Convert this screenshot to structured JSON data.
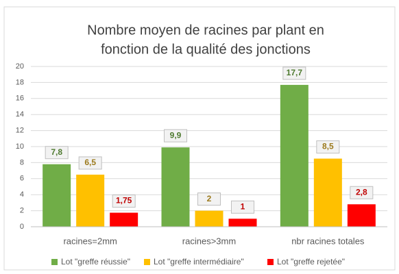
{
  "chart_data": {
    "type": "bar",
    "title": [
      "Nombre moyen de racines par plant en",
      "fonction de la qualité des jonctions"
    ],
    "categories": [
      "racines=2mm",
      "racines>3mm",
      "nbr racines totales"
    ],
    "series": [
      {
        "name": "Lot \"greffe réussie\"",
        "color": "#70ad47",
        "label_color": "#4e7a2f",
        "values": [
          7.8,
          9.9,
          17.7
        ],
        "value_labels": [
          "7,8",
          "9,9",
          "17,7"
        ]
      },
      {
        "name": "Lot \"greffe intermédiaire\"",
        "color": "#ffc000",
        "label_color": "#9c7a1c",
        "values": [
          6.5,
          2,
          8.5
        ],
        "value_labels": [
          "6,5",
          "2",
          "8,5"
        ]
      },
      {
        "name": "Lot \"greffe rejetée\"",
        "color": "#ff0000",
        "label_color": "#c00000",
        "values": [
          1.75,
          1,
          2.8
        ],
        "value_labels": [
          "1,75",
          "1",
          "2,8"
        ]
      }
    ],
    "ylim": [
      0,
      20
    ],
    "yticks": [
      0,
      2,
      4,
      6,
      8,
      10,
      12,
      14,
      16,
      18,
      20
    ],
    "grid": true,
    "legend": "bottom"
  }
}
